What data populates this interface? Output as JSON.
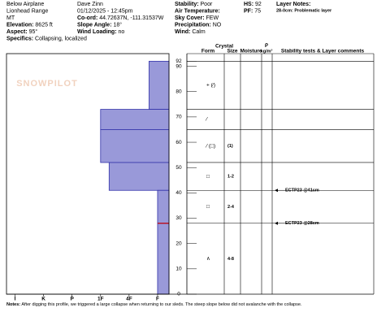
{
  "header": {
    "columns": [
      [
        {
          "text": "Below Airplane"
        },
        {
          "text": "Lionhead Range"
        },
        {
          "text": "MT"
        },
        {
          "label": "Elevation:",
          "value": "8625 ft"
        },
        {
          "label": "Aspect:",
          "value": "95°"
        },
        {
          "label": "Specifics:",
          "value": "Collapsing, localized"
        }
      ],
      [
        {
          "text": "Dave Zinn"
        },
        {
          "text": "01/12/2025 - 12:45pm"
        },
        {
          "label": "Co-ord:",
          "value": "44.72637N, -111.31537W"
        },
        {
          "label": "Slope Angle:",
          "value": "18°"
        },
        {
          "label": "Wind Loading:",
          "value": "no"
        }
      ],
      [
        {
          "label": "Stability:",
          "value": "Poor"
        },
        {
          "label": "Air Temperature:"
        },
        {
          "label": "Sky Cover:",
          "value": "FEW"
        },
        {
          "label": "Precipitation:",
          "value": "NO"
        },
        {
          "label": "Wind:",
          "value": "Calm"
        }
      ],
      [
        {
          "label": "HS:",
          "value": "92"
        },
        {
          "label": "PF:",
          "value": "75"
        }
      ],
      [
        {
          "label": "Layer Notes:"
        },
        {
          "label": "28-0cm:",
          "value": "Problematic layer"
        }
      ]
    ]
  },
  "logo": "SNOWPILOT",
  "profile": {
    "ylim": [
      0,
      95
    ],
    "yticks": [
      92,
      90,
      80,
      70,
      60,
      50,
      40,
      30,
      20,
      10,
      0
    ],
    "xlim": [
      6.3,
      0.6
    ],
    "xticks": [
      {
        "value": 6,
        "label": "I"
      },
      {
        "value": 5,
        "label": "K"
      },
      {
        "value": 4,
        "label": "P"
      },
      {
        "value": 3,
        "label": "1F"
      },
      {
        "value": 2,
        "label": "4F"
      },
      {
        "value": 1,
        "label": "F"
      }
    ],
    "layers": [
      {
        "top": 92,
        "bottom": 73,
        "hardness": 1.3,
        "form": "+ (⁄)"
      },
      {
        "top": 73,
        "bottom": 65,
        "hardness": 3,
        "form": "⁄"
      },
      {
        "top": 65,
        "bottom": 52,
        "hardness": 3,
        "form": "⁄ (□)",
        "size": "(1)"
      },
      {
        "top": 52,
        "bottom": 41,
        "hardness": 2.7,
        "form": "□",
        "size": "1-2"
      },
      {
        "top": 41,
        "bottom": 28,
        "hardness": 1,
        "form": "□",
        "size": "2-4"
      },
      {
        "top": 28,
        "bottom": 0,
        "hardness": 1,
        "form": "∧",
        "size": "4-8"
      }
    ],
    "problem_depth": 28,
    "tests": [
      {
        "depth": 41,
        "label": "ECTP23 @41cm"
      },
      {
        "depth": 28,
        "label": "ECTP23 @28cm"
      }
    ],
    "columns": {
      "crystal": "Crystal",
      "form": "Form",
      "size": "Size",
      "moisture": "Moisture",
      "rho": "ρ",
      "density": "kg/m³",
      "comments": "Stability tests & Layer comments"
    }
  },
  "notes": {
    "label": "Notes:",
    "text": "After digging this profile, we triggered a large collapse when returning to our sleds. The steep slope below did not avalanche with the collapse."
  }
}
